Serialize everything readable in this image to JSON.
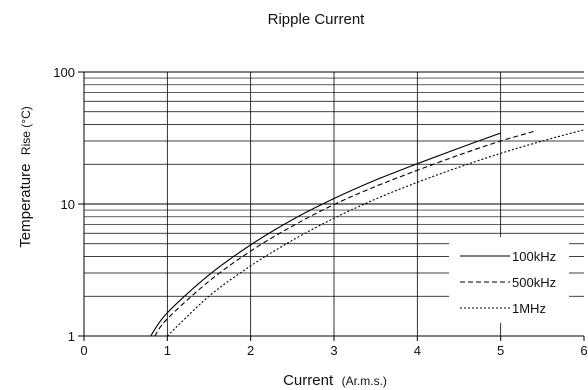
{
  "chart_data": {
    "type": "line",
    "title": "Ripple Current",
    "xlabel": "Current",
    "xlabel_unit": "(Ar.m.s.)",
    "ylabel": "Temperature",
    "ylabel_unit": "Rise (°C)",
    "xlim": [
      0,
      6
    ],
    "ylim": [
      1,
      100
    ],
    "yscale": "log",
    "grid": true,
    "legend_position": "bottom-right",
    "x_ticks": [
      "0",
      "1",
      "2",
      "3",
      "4",
      "5",
      "6"
    ],
    "y_ticks": [
      "1",
      "10",
      "100"
    ],
    "series": [
      {
        "name": "100kHz",
        "linestyle": "solid",
        "x": [
          0.8,
          1.0,
          1.5,
          2.0,
          2.5,
          3.0,
          3.5,
          4.0,
          4.5,
          5.0
        ],
        "y": [
          1.0,
          1.5,
          2.9,
          4.9,
          7.6,
          11.0,
          15.2,
          20.2,
          26.5,
          34.5
        ]
      },
      {
        "name": "500kHz",
        "linestyle": "dashed",
        "x": [
          0.85,
          1.0,
          1.5,
          2.0,
          2.5,
          3.0,
          3.5,
          4.0,
          4.5,
          5.0,
          5.4
        ],
        "y": [
          1.0,
          1.35,
          2.6,
          4.4,
          6.8,
          9.9,
          13.6,
          18.0,
          23.5,
          30.0,
          35.5
        ]
      },
      {
        "name": "1MHz",
        "linestyle": "dotted",
        "x": [
          1.0,
          1.5,
          2.0,
          2.5,
          3.0,
          3.5,
          4.0,
          4.5,
          5.0,
          5.5,
          6.0
        ],
        "y": [
          1.0,
          2.0,
          3.4,
          5.3,
          7.8,
          10.9,
          14.6,
          19.0,
          24.2,
          30.0,
          36.5
        ]
      }
    ]
  }
}
